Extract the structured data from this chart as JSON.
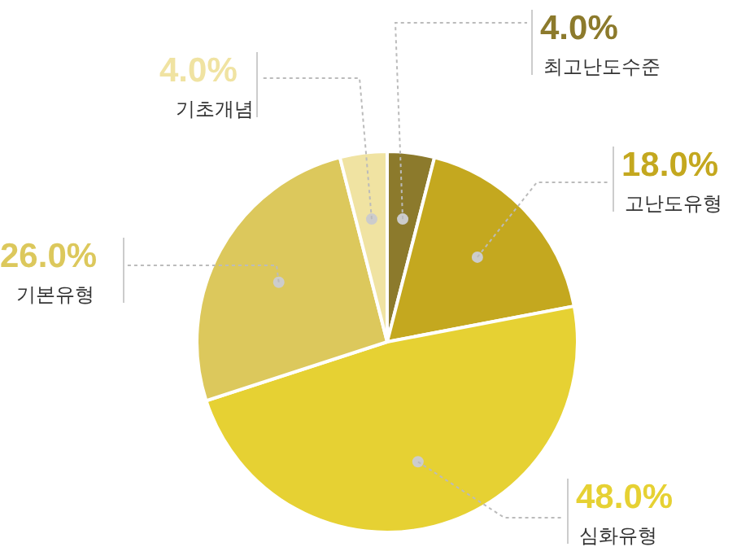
{
  "chart_data": {
    "type": "pie",
    "categories": [
      "최고난도수준",
      "고난도유형",
      "심화유형",
      "기본유형",
      "기초개념"
    ],
    "values": [
      4,
      18,
      48,
      26,
      4
    ],
    "value_labels": [
      "4.0%",
      "18.0%",
      "48.0%",
      "26.0%",
      "4.0%"
    ],
    "colors": [
      "#8c7a2c",
      "#c4a81f",
      "#e6d133",
      "#dcc85c",
      "#f0e3a2"
    ],
    "legend": false
  }
}
